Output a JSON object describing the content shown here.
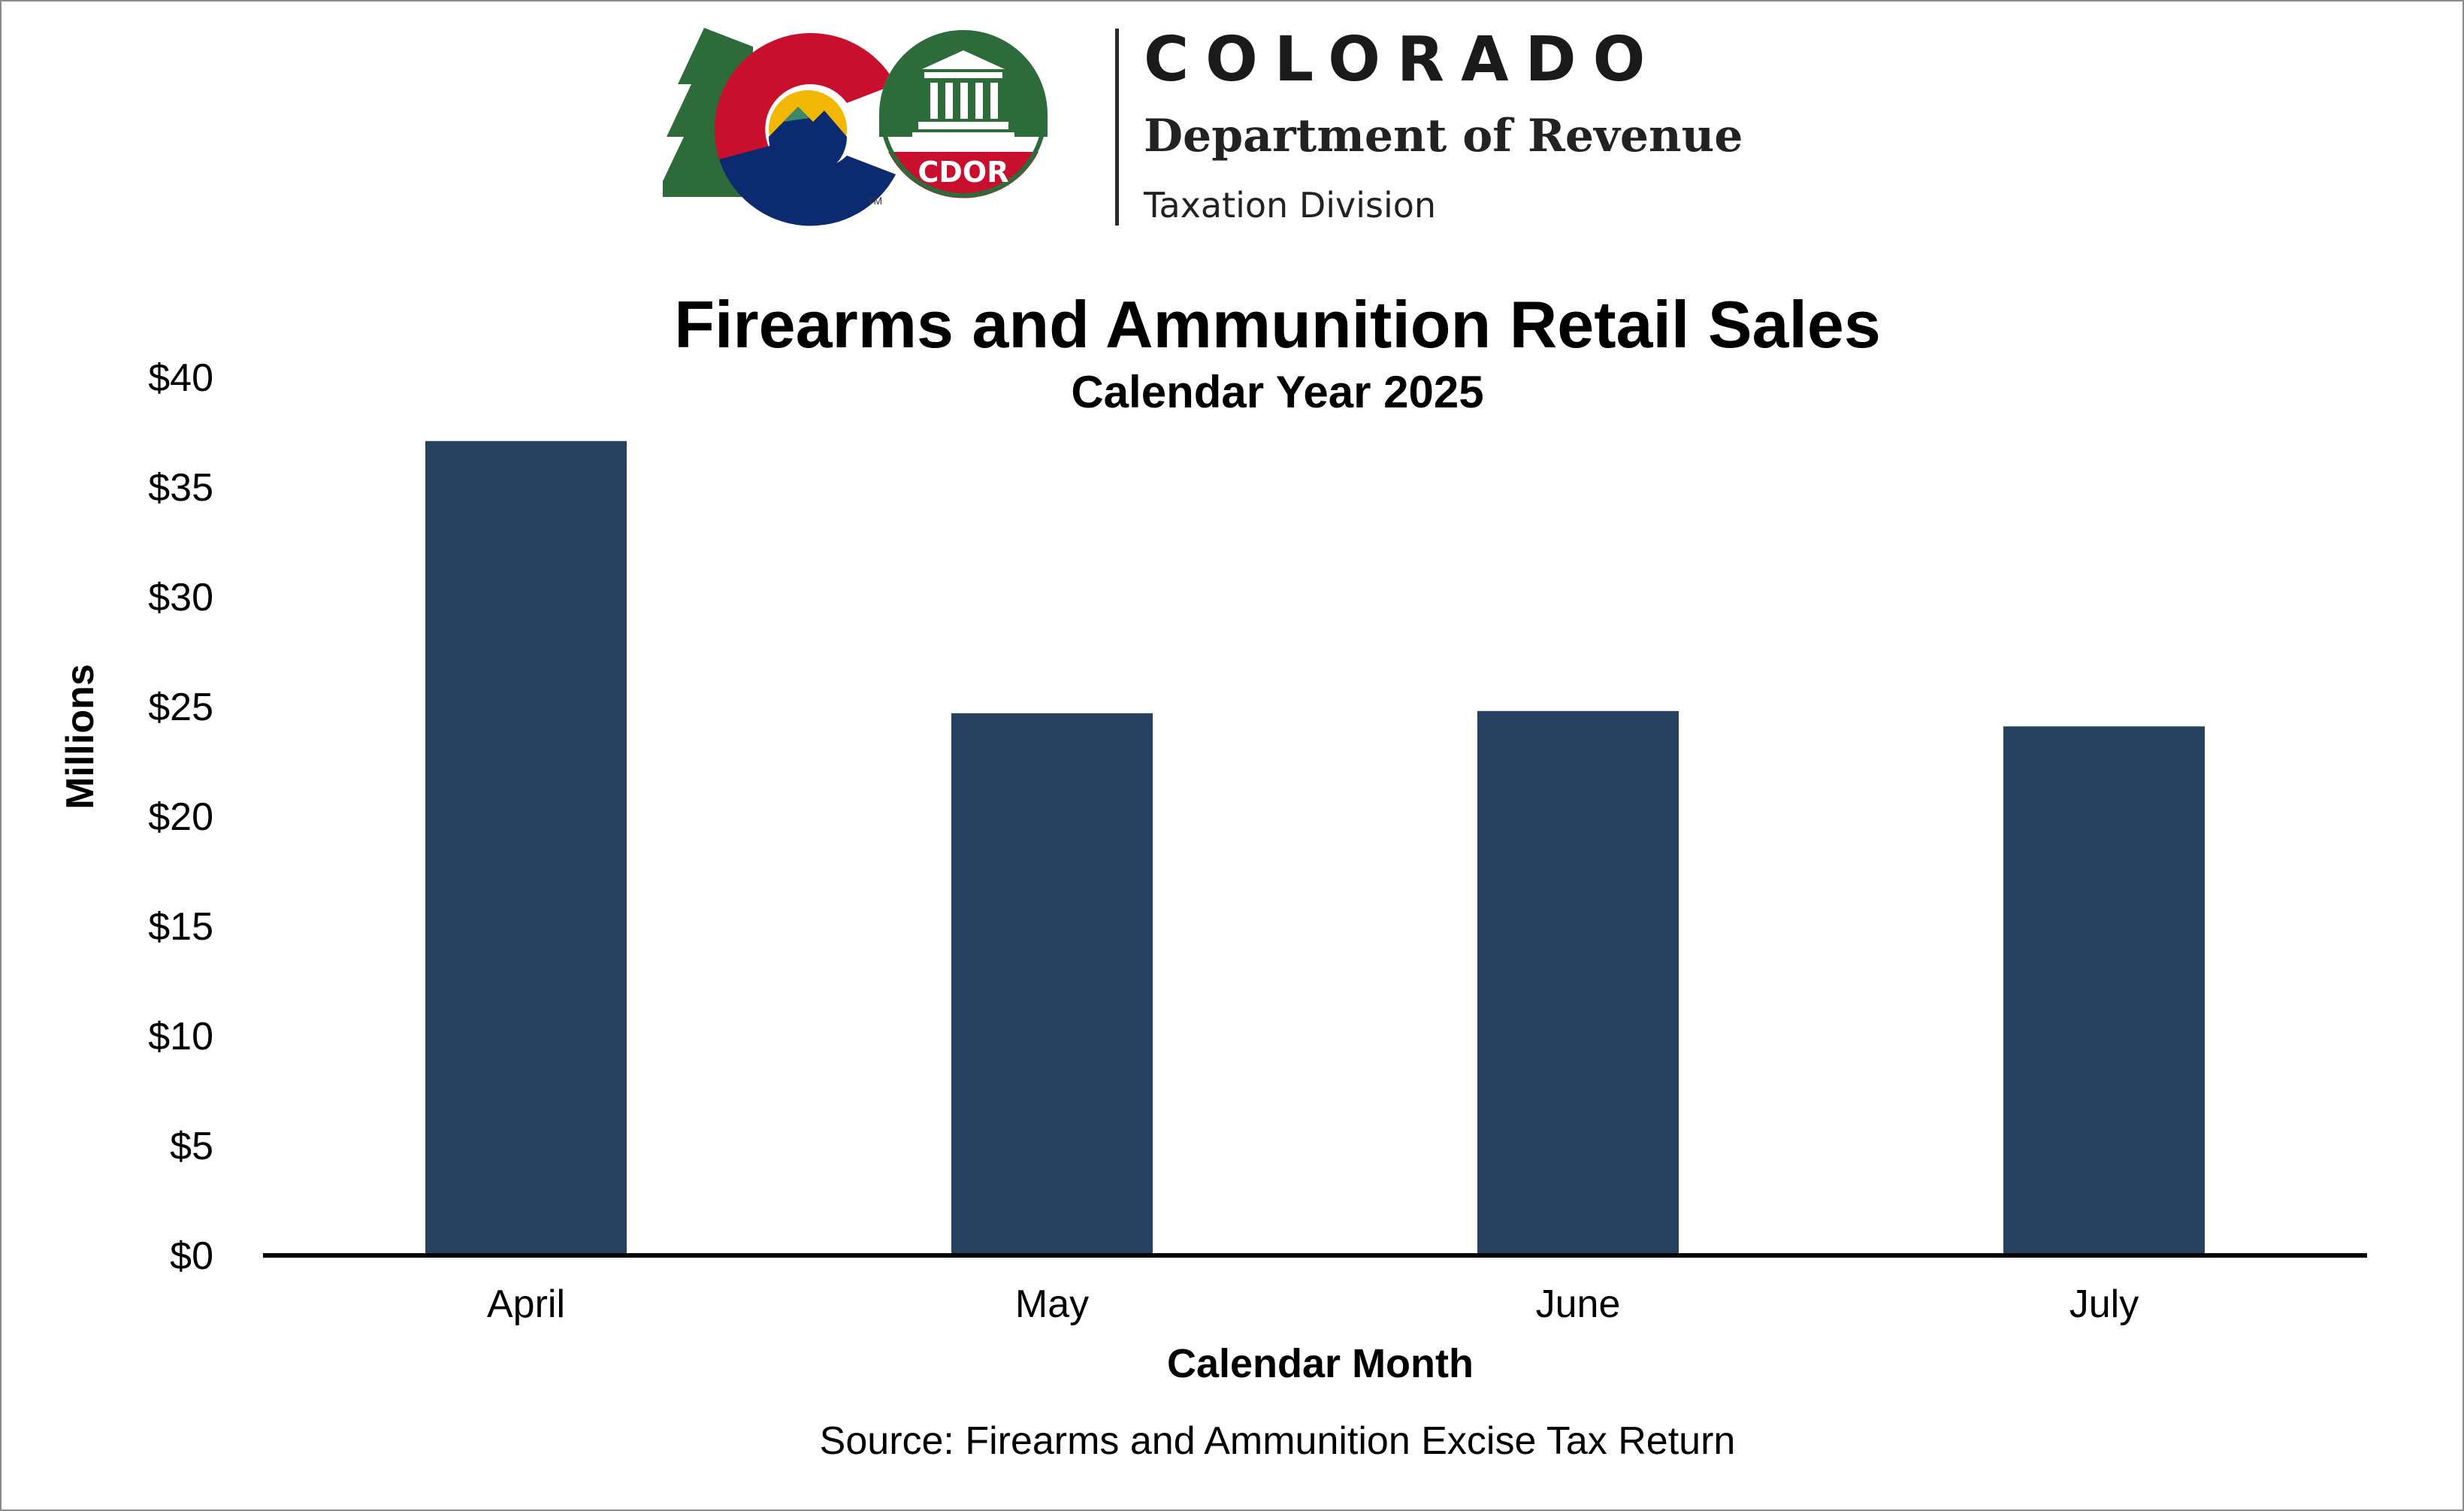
{
  "logo": {
    "state": "COLORADO",
    "department": "Department of Revenue",
    "division": "Taxation Division",
    "badge": "CDOR",
    "trademark": "TM"
  },
  "colors": {
    "bar": "#27405f",
    "logo_red": "#c8102e",
    "logo_blue": "#0b2a6f",
    "logo_green": "#2e6b3a",
    "logo_gold": "#f2b705"
  },
  "chart_data": {
    "type": "bar",
    "title": "Firearms and Ammunition Retail Sales",
    "subtitle": "Calendar Year 2025",
    "xlabel": "Calendar Month",
    "ylabel": "Millions",
    "categories": [
      "April",
      "May",
      "June",
      "July"
    ],
    "values": [
      37.1,
      24.7,
      24.8,
      24.1
    ],
    "ylim": [
      0,
      40
    ],
    "yticks": [
      {
        "value": 0,
        "label": "$0"
      },
      {
        "value": 5,
        "label": "$5"
      },
      {
        "value": 10,
        "label": "$10"
      },
      {
        "value": 15,
        "label": "$15"
      },
      {
        "value": 20,
        "label": "$20"
      },
      {
        "value": 25,
        "label": "$25"
      },
      {
        "value": 30,
        "label": "$30"
      },
      {
        "value": 35,
        "label": "$35"
      },
      {
        "value": 40,
        "label": "$40"
      }
    ],
    "grid": false,
    "legend": "none",
    "source": "Source: Firearms and Ammunition Excise Tax Return"
  }
}
